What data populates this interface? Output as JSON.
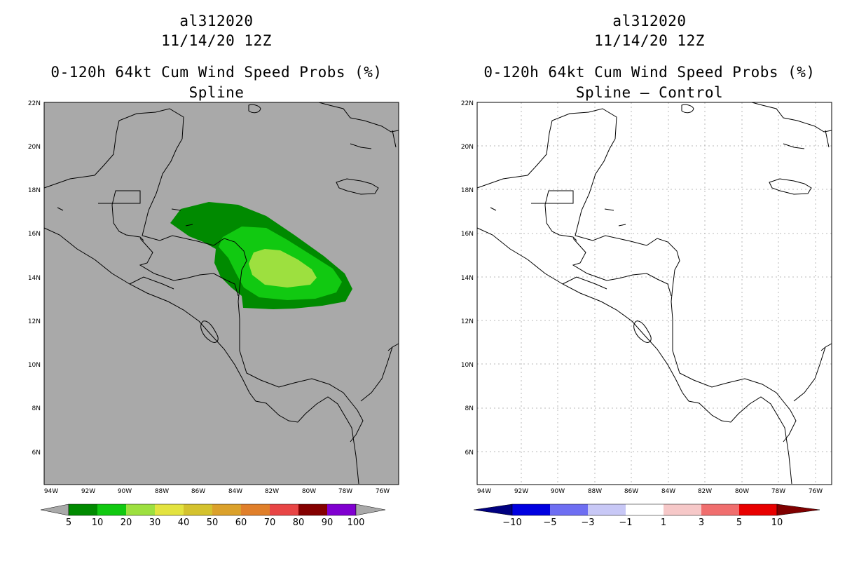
{
  "left": {
    "storm_id": "al312020",
    "datetime": "11/14/20 12Z",
    "product": "0-120h 64kt Cum Wind Speed Probs (%)",
    "subtitle": "Spline",
    "colors": {
      "background": "#a9a9a9",
      "c5": "#008a00",
      "c10": "#11c911",
      "c20": "#9de03f"
    },
    "colorbar": {
      "under_color": "#a9a9a9",
      "over_color": "#a9a9a9",
      "colors": [
        "#008a00",
        "#11c911",
        "#9de03f",
        "#e3e33f",
        "#d4c22e",
        "#dba12b",
        "#e07f2a",
        "#e84545",
        "#840000",
        "#8000d0"
      ],
      "labels": [
        "5",
        "10",
        "20",
        "30",
        "40",
        "50",
        "60",
        "70",
        "80",
        "90",
        "100"
      ]
    }
  },
  "right": {
    "storm_id": "al312020",
    "datetime": "11/14/20 12Z",
    "product": "0-120h 64kt Cum Wind Speed Probs (%)",
    "subtitle": "Spline – Control",
    "colorbar": {
      "under_color": "#000080",
      "over_color": "#800000",
      "colors": [
        "#0000e0",
        "#6e6ef2",
        "#c8c8f6",
        "#ffffff",
        "#f6c8c8",
        "#f06e6e",
        "#e80000"
      ],
      "labels": [
        "−10",
        "−5",
        "−3",
        "−1",
        "1",
        "3",
        "5",
        "10"
      ]
    }
  },
  "lat_labels": [
    "22N",
    "20N",
    "18N",
    "16N",
    "14N",
    "12N",
    "10N",
    "8N",
    "6N"
  ],
  "lon_labels": [
    "94W",
    "92W",
    "90W",
    "88W",
    "86W",
    "84W",
    "82W",
    "80W",
    "78W",
    "76W"
  ]
}
